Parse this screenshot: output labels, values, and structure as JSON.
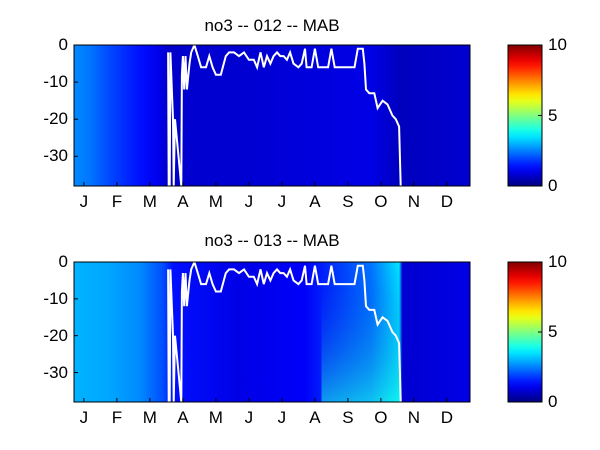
{
  "chart_data": [
    {
      "type": "heatmap",
      "title": "no3 -- 012 -- MAB",
      "x_ticks": [
        "J",
        "F",
        "M",
        "A",
        "M",
        "J",
        "J",
        "A",
        "S",
        "O",
        "N",
        "D"
      ],
      "y_ticks": [
        "0",
        "-10",
        "-20",
        "-30"
      ],
      "ylim": [
        -38,
        0
      ],
      "colorbar": {
        "min": 0,
        "max": 10,
        "ticks": [
          "10",
          "5",
          "0"
        ],
        "colormap": "jet"
      },
      "background_value": 1.0,
      "field": [
        {
          "month": 0.0,
          "value": 2.6
        },
        {
          "month": 0.5,
          "value": 2.4
        },
        {
          "month": 1.0,
          "value": 2.0
        },
        {
          "month": 1.5,
          "value": 1.7
        },
        {
          "month": 2.0,
          "value": 1.4
        },
        {
          "month": 2.5,
          "value": 1.1
        },
        {
          "month": 2.9,
          "value": 0.7
        },
        {
          "month": 3.5,
          "value": 0.8
        },
        {
          "month": 5.0,
          "value": 0.8
        },
        {
          "month": 7.0,
          "value": 0.9
        },
        {
          "month": 9.0,
          "value": 1.0
        },
        {
          "month": 9.9,
          "value": 0.6
        },
        {
          "month": 12.0,
          "value": 0.8
        }
      ],
      "mixed_layer_depth": [
        [
          2.85,
          -2
        ],
        [
          2.87,
          -38
        ],
        [
          2.9,
          -38
        ],
        [
          2.92,
          -2
        ],
        [
          3.0,
          -20
        ],
        [
          3.02,
          -38
        ],
        [
          3.06,
          -20
        ],
        [
          3.25,
          -38
        ],
        [
          3.27,
          -8
        ],
        [
          3.3,
          -3
        ],
        [
          3.34,
          -12
        ],
        [
          3.38,
          -3
        ],
        [
          3.42,
          -12
        ],
        [
          3.5,
          -5
        ],
        [
          3.55,
          -2
        ],
        [
          3.65,
          0
        ],
        [
          3.75,
          -3
        ],
        [
          3.85,
          -6
        ],
        [
          4.0,
          -6
        ],
        [
          4.1,
          -3
        ],
        [
          4.2,
          -6
        ],
        [
          4.3,
          -8
        ],
        [
          4.45,
          -8
        ],
        [
          4.6,
          -3
        ],
        [
          4.7,
          -2
        ],
        [
          4.85,
          -2
        ],
        [
          5.0,
          -3
        ],
        [
          5.15,
          -2
        ],
        [
          5.3,
          -4
        ],
        [
          5.45,
          -4
        ],
        [
          5.55,
          -6
        ],
        [
          5.65,
          -2
        ],
        [
          5.75,
          -6
        ],
        [
          5.85,
          -3
        ],
        [
          5.95,
          -5
        ],
        [
          6.05,
          -3
        ],
        [
          6.15,
          -2
        ],
        [
          6.25,
          -3
        ],
        [
          6.35,
          -3
        ],
        [
          6.45,
          -4
        ],
        [
          6.55,
          -2
        ],
        [
          6.65,
          -5
        ],
        [
          6.8,
          -6
        ],
        [
          6.9,
          -5
        ],
        [
          7.0,
          -1
        ],
        [
          7.05,
          -6
        ],
        [
          7.2,
          -6
        ],
        [
          7.3,
          -1
        ],
        [
          7.4,
          -6
        ],
        [
          7.55,
          -6
        ],
        [
          7.7,
          -6
        ],
        [
          7.8,
          -1
        ],
        [
          7.9,
          -6
        ],
        [
          8.0,
          -6
        ],
        [
          8.1,
          -6
        ],
        [
          8.25,
          -6
        ],
        [
          8.5,
          -6
        ],
        [
          8.6,
          -1
        ],
        [
          8.75,
          -1
        ],
        [
          8.8,
          -5
        ],
        [
          8.85,
          -12
        ],
        [
          8.95,
          -13
        ],
        [
          9.1,
          -13
        ],
        [
          9.2,
          -17
        ],
        [
          9.35,
          -15
        ],
        [
          9.5,
          -16
        ],
        [
          9.65,
          -19
        ],
        [
          9.75,
          -20
        ],
        [
          9.85,
          -22
        ],
        [
          9.9,
          -38
        ]
      ]
    },
    {
      "type": "heatmap",
      "title": "no3 -- 013 -- MAB",
      "x_ticks": [
        "J",
        "F",
        "M",
        "A",
        "M",
        "J",
        "J",
        "A",
        "S",
        "O",
        "N",
        "D"
      ],
      "y_ticks": [
        "0",
        "-10",
        "-20",
        "-30"
      ],
      "ylim": [
        -38,
        0
      ],
      "colorbar": {
        "min": 0,
        "max": 10,
        "ticks": [
          "10",
          "5",
          "0"
        ],
        "colormap": "jet"
      },
      "background_value": 1.3,
      "field": [
        {
          "month": 0.0,
          "value": 3.0
        },
        {
          "month": 1.0,
          "value": 2.9
        },
        {
          "month": 2.0,
          "value": 2.6
        },
        {
          "month": 2.7,
          "value": 2.0
        },
        {
          "month": 3.0,
          "value": 1.4
        },
        {
          "month": 5.0,
          "value": 1.0
        },
        {
          "month": 7.0,
          "value": 1.2
        },
        {
          "month": 9.0,
          "value": 2.4
        },
        {
          "month": 9.85,
          "value": 3.5
        },
        {
          "month": 9.95,
          "value": 0.8
        },
        {
          "month": 12.0,
          "value": 1.0
        }
      ],
      "mixed_layer_depth": [
        [
          2.85,
          -2
        ],
        [
          2.87,
          -38
        ],
        [
          2.9,
          -38
        ],
        [
          2.92,
          -2
        ],
        [
          3.0,
          -20
        ],
        [
          3.02,
          -38
        ],
        [
          3.06,
          -20
        ],
        [
          3.25,
          -38
        ],
        [
          3.27,
          -8
        ],
        [
          3.3,
          -3
        ],
        [
          3.34,
          -12
        ],
        [
          3.38,
          -3
        ],
        [
          3.42,
          -12
        ],
        [
          3.5,
          -5
        ],
        [
          3.55,
          -2
        ],
        [
          3.65,
          0
        ],
        [
          3.75,
          -3
        ],
        [
          3.85,
          -6
        ],
        [
          4.0,
          -6
        ],
        [
          4.1,
          -3
        ],
        [
          4.2,
          -6
        ],
        [
          4.3,
          -8
        ],
        [
          4.45,
          -8
        ],
        [
          4.6,
          -3
        ],
        [
          4.7,
          -2
        ],
        [
          4.85,
          -2
        ],
        [
          5.0,
          -3
        ],
        [
          5.15,
          -2
        ],
        [
          5.3,
          -4
        ],
        [
          5.45,
          -4
        ],
        [
          5.55,
          -6
        ],
        [
          5.65,
          -2
        ],
        [
          5.75,
          -6
        ],
        [
          5.85,
          -3
        ],
        [
          5.95,
          -5
        ],
        [
          6.05,
          -3
        ],
        [
          6.15,
          -2
        ],
        [
          6.25,
          -3
        ],
        [
          6.35,
          -3
        ],
        [
          6.45,
          -4
        ],
        [
          6.55,
          -2
        ],
        [
          6.65,
          -5
        ],
        [
          6.8,
          -6
        ],
        [
          6.9,
          -5
        ],
        [
          7.0,
          -1
        ],
        [
          7.05,
          -6
        ],
        [
          7.2,
          -6
        ],
        [
          7.3,
          -1
        ],
        [
          7.4,
          -6
        ],
        [
          7.55,
          -6
        ],
        [
          7.7,
          -6
        ],
        [
          7.8,
          -1
        ],
        [
          7.9,
          -6
        ],
        [
          8.0,
          -6
        ],
        [
          8.1,
          -6
        ],
        [
          8.25,
          -6
        ],
        [
          8.5,
          -6
        ],
        [
          8.6,
          -1
        ],
        [
          8.75,
          -1
        ],
        [
          8.8,
          -5
        ],
        [
          8.85,
          -12
        ],
        [
          8.95,
          -13
        ],
        [
          9.1,
          -13
        ],
        [
          9.2,
          -17
        ],
        [
          9.35,
          -15
        ],
        [
          9.5,
          -16
        ],
        [
          9.65,
          -19
        ],
        [
          9.75,
          -20
        ],
        [
          9.85,
          -22
        ],
        [
          9.9,
          -38
        ]
      ]
    }
  ]
}
